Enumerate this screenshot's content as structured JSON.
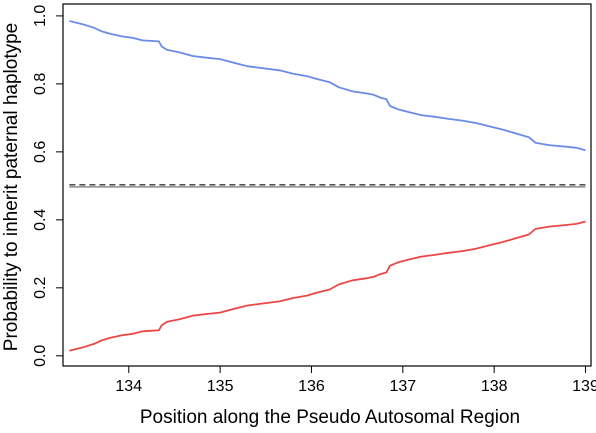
{
  "chart_data": {
    "type": "line",
    "title": "",
    "xlabel": "Position along the Pseudo Autosomal Region",
    "ylabel": "Probability to inherit paternal haplotype",
    "xlim": [
      133.28,
      139.06
    ],
    "ylim": [
      -0.03,
      1.035
    ],
    "xticks": [
      134,
      135,
      136,
      137,
      138,
      139
    ],
    "xtick_labels": [
      "134",
      "135",
      "136",
      "137",
      "138",
      "139"
    ],
    "yticks": [
      0.0,
      0.2,
      0.4,
      0.6,
      0.8,
      1.0
    ],
    "ytick_labels": [
      "0.0",
      "0.2",
      "0.4",
      "0.6",
      "0.8",
      "1.0"
    ],
    "grid": false,
    "legend": "none",
    "series": [
      {
        "color": "#6b8be8",
        "style": "solid",
        "x": [
          133.35,
          133.5,
          133.62,
          133.7,
          133.8,
          133.92,
          134.05,
          134.15,
          134.33,
          134.36,
          134.42,
          134.55,
          134.7,
          134.85,
          135.0,
          135.15,
          135.3,
          135.5,
          135.65,
          135.8,
          135.95,
          136.05,
          136.2,
          136.3,
          136.45,
          136.6,
          136.68,
          136.75,
          136.82,
          136.86,
          136.95,
          137.05,
          137.2,
          137.35,
          137.5,
          137.65,
          137.8,
          137.95,
          138.1,
          138.25,
          138.38,
          138.45,
          138.6,
          138.8,
          138.9,
          139.0
        ],
        "y": [
          0.985,
          0.975,
          0.965,
          0.955,
          0.947,
          0.94,
          0.935,
          0.928,
          0.925,
          0.91,
          0.9,
          0.893,
          0.882,
          0.877,
          0.873,
          0.862,
          0.852,
          0.845,
          0.84,
          0.83,
          0.823,
          0.815,
          0.805,
          0.79,
          0.778,
          0.772,
          0.768,
          0.76,
          0.755,
          0.735,
          0.725,
          0.718,
          0.708,
          0.703,
          0.697,
          0.692,
          0.685,
          0.675,
          0.665,
          0.653,
          0.643,
          0.627,
          0.62,
          0.615,
          0.612,
          0.605
        ]
      },
      {
        "color": "#ec4747",
        "style": "solid",
        "x": [
          133.35,
          133.5,
          133.62,
          133.7,
          133.8,
          133.92,
          134.05,
          134.15,
          134.33,
          134.36,
          134.42,
          134.55,
          134.7,
          134.85,
          135.0,
          135.15,
          135.3,
          135.5,
          135.65,
          135.8,
          135.95,
          136.05,
          136.2,
          136.3,
          136.45,
          136.6,
          136.68,
          136.75,
          136.82,
          136.86,
          136.95,
          137.05,
          137.2,
          137.35,
          137.5,
          137.65,
          137.8,
          137.95,
          138.1,
          138.25,
          138.38,
          138.45,
          138.6,
          138.8,
          138.9,
          139.0
        ],
        "y": [
          0.015,
          0.025,
          0.035,
          0.045,
          0.053,
          0.06,
          0.065,
          0.072,
          0.075,
          0.09,
          0.1,
          0.107,
          0.118,
          0.123,
          0.127,
          0.138,
          0.148,
          0.155,
          0.16,
          0.17,
          0.177,
          0.185,
          0.195,
          0.21,
          0.222,
          0.228,
          0.232,
          0.24,
          0.245,
          0.265,
          0.275,
          0.282,
          0.292,
          0.297,
          0.303,
          0.308,
          0.315,
          0.325,
          0.335,
          0.347,
          0.357,
          0.373,
          0.38,
          0.385,
          0.388,
          0.395
        ]
      },
      {
        "color": "#555555",
        "style": "dashed",
        "x": [
          133.35,
          139.0
        ],
        "y": [
          0.503,
          0.503
        ]
      },
      {
        "color": "#9a9a9a",
        "style": "solid",
        "x": [
          133.35,
          139.0
        ],
        "y": [
          0.497,
          0.497
        ]
      }
    ]
  }
}
